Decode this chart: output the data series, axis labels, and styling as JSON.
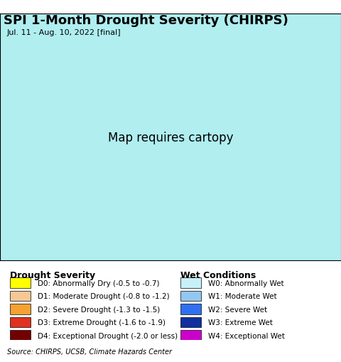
{
  "title": "SPI 1-Month Drought Severity (CHIRPS)",
  "subtitle": "Jul. 11 - Aug. 10, 2022 [final]",
  "source_text": "Source: CHIRPS, UCSB, Climate Hazards Center",
  "fig_width": 4.8,
  "fig_height": 5.1,
  "dpi": 100,
  "background_color": "#f0e8e8",
  "ocean_color": "#b0eef0",
  "land_color": "#f5f5f5",
  "title_fontsize": 13,
  "subtitle_fontsize": 8,
  "source_fontsize": 7,
  "legend_drought": [
    {
      "code": "D0",
      "label": "D0: Abnormally Dry (-0.5 to -0.7)",
      "color": "#ffff00"
    },
    {
      "code": "D1",
      "label": "D1: Moderate Drought (-0.8 to -1.2)",
      "color": "#f5c896"
    },
    {
      "code": "D2",
      "label": "D2: Severe Drought (-1.3 to -1.5)",
      "color": "#f5a232"
    },
    {
      "code": "D3",
      "label": "D3: Extreme Drought (-1.6 to -1.9)",
      "color": "#e03020"
    },
    {
      "code": "D4",
      "label": "D4: Exceptional Drought (-2.0 or less)",
      "color": "#720000"
    }
  ],
  "legend_wet": [
    {
      "code": "W0",
      "label": "W0: Abnormally Wet",
      "color": "#c8f0f8"
    },
    {
      "code": "W1",
      "label": "W1: Moderate Wet",
      "color": "#92c8f0"
    },
    {
      "code": "W2",
      "label": "W2: Severe Wet",
      "color": "#3070f0"
    },
    {
      "code": "W3",
      "label": "W3: Extreme Wet",
      "color": "#1030a0"
    },
    {
      "code": "W4",
      "label": "W4: Exceptional Wet",
      "color": "#cc00cc"
    }
  ],
  "drought_title": "Drought Severity",
  "wet_title": "Wet Conditions",
  "map_extent": [
    124.0,
    132.0,
    33.0,
    43.5
  ],
  "title_color": "#000000",
  "legend_fontsize": 7.5,
  "legend_title_fontsize": 9
}
